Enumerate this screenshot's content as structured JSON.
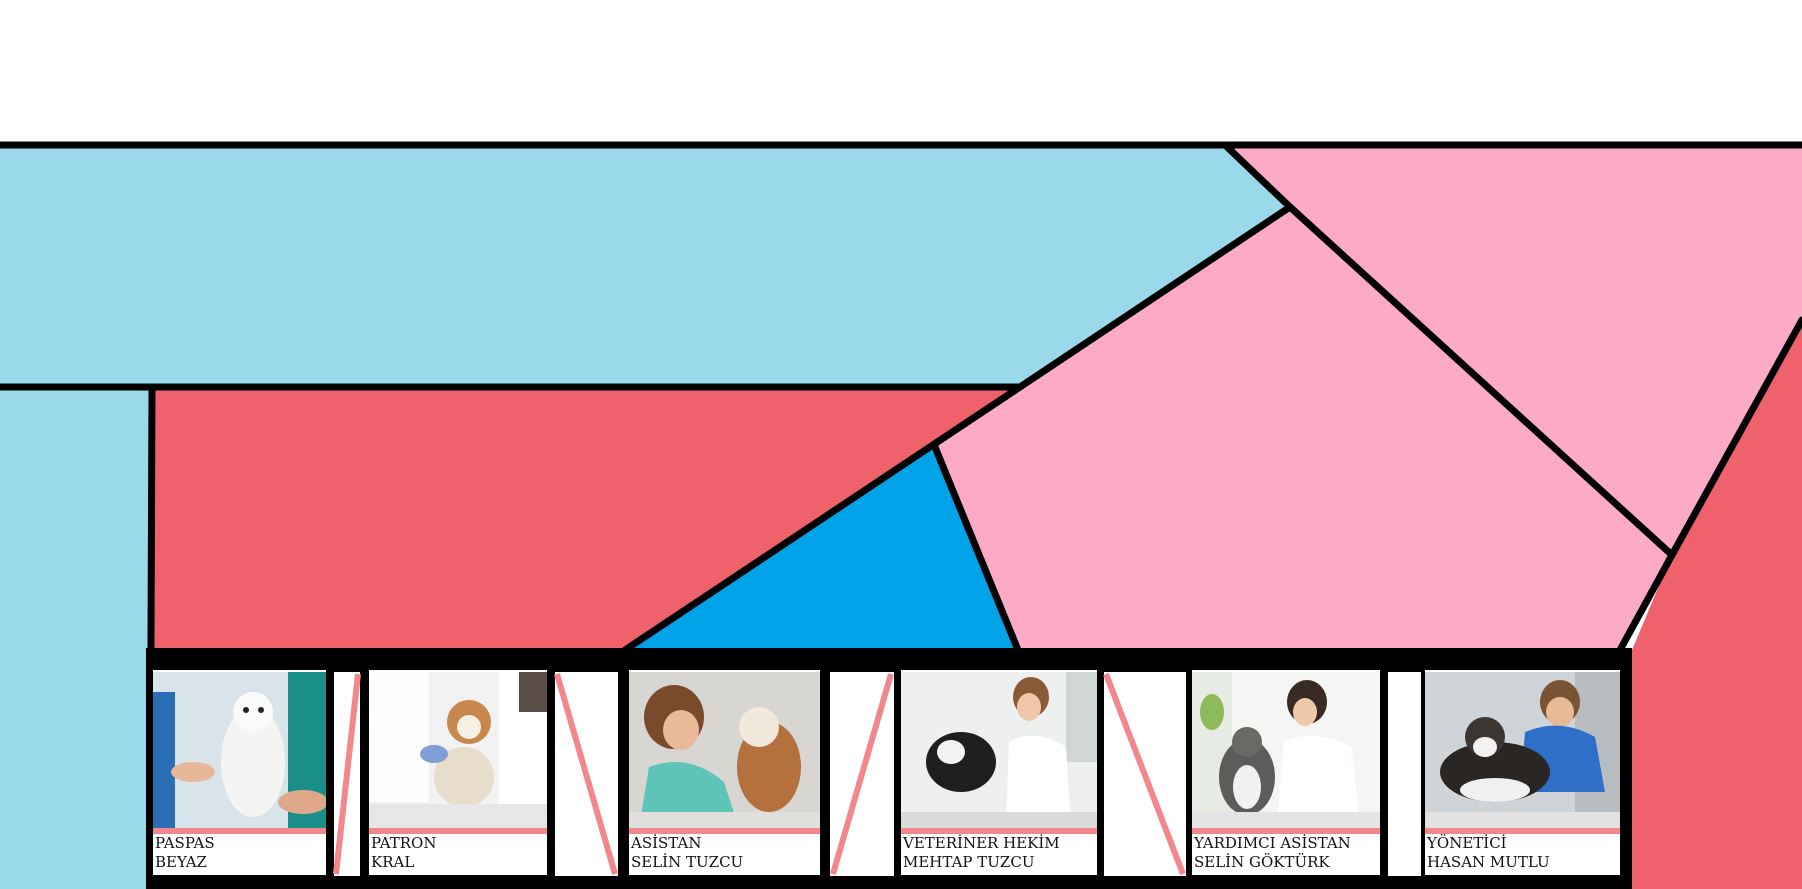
{
  "colors": {
    "light_blue": "#99d9ea",
    "coral": "#ef626b",
    "pink": "#fcaac6",
    "bright_blue": "#00a2e8",
    "outline": "#000000",
    "accent_stripe": "#f2878c"
  },
  "team": [
    {
      "role": "PASPAS",
      "name": "BEYAZ",
      "photo": "vet-with-white-dog"
    },
    {
      "role": "PATRON",
      "name": "KRAL",
      "photo": "vets-with-jack-russell"
    },
    {
      "role": "ASİSTAN",
      "name": "SELİN TUZCU",
      "photo": "assistant-with-bulldog"
    },
    {
      "role": "VETERİNER HEKİM",
      "name": "MEHTAP TUZCU",
      "photo": "vet-with-black-dog"
    },
    {
      "role": "YARDIMCI ASİSTAN",
      "name": "SELİN GÖKTÜRK",
      "photo": "vet-with-cat"
    },
    {
      "role": "YÖNETİCİ",
      "name": "HASAN MUTLU",
      "photo": "vet-with-husky"
    }
  ]
}
